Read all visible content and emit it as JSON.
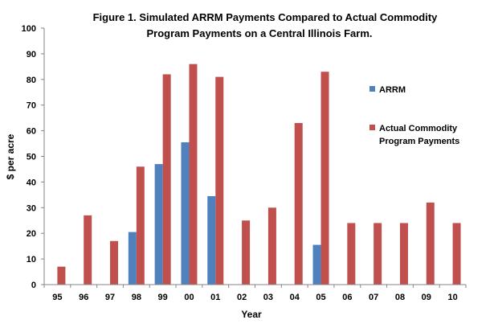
{
  "chart_data": {
    "type": "bar",
    "title_lines": [
      "Figure 1.  Simulated ARRM Payments Compared to Actual Commodity",
      "Program Payments on a Central Illinois Farm."
    ],
    "xlabel": "Year",
    "ylabel": "$ per acre",
    "ylim": [
      0,
      100
    ],
    "yticks": [
      0,
      10,
      20,
      30,
      40,
      50,
      60,
      70,
      80,
      90,
      100
    ],
    "categories": [
      "95",
      "96",
      "97",
      "98",
      "99",
      "00",
      "01",
      "02",
      "03",
      "04",
      "05",
      "06",
      "07",
      "08",
      "09",
      "10"
    ],
    "series": [
      {
        "name": "ARRM",
        "color": "#4f81bd",
        "values": [
          null,
          null,
          null,
          20.5,
          47,
          55.5,
          34.5,
          null,
          null,
          null,
          15.5,
          null,
          null,
          null,
          null,
          null
        ]
      },
      {
        "name": "Actual Commodity Program Payments",
        "legend_lines": [
          "Actual Commodity",
          "Program Payments"
        ],
        "color": "#c0504d",
        "values": [
          7,
          27,
          17,
          46,
          82,
          86,
          81,
          25,
          30,
          63,
          83,
          24,
          24,
          24,
          32,
          24
        ]
      }
    ],
    "grid": false,
    "legend_position": "right"
  }
}
